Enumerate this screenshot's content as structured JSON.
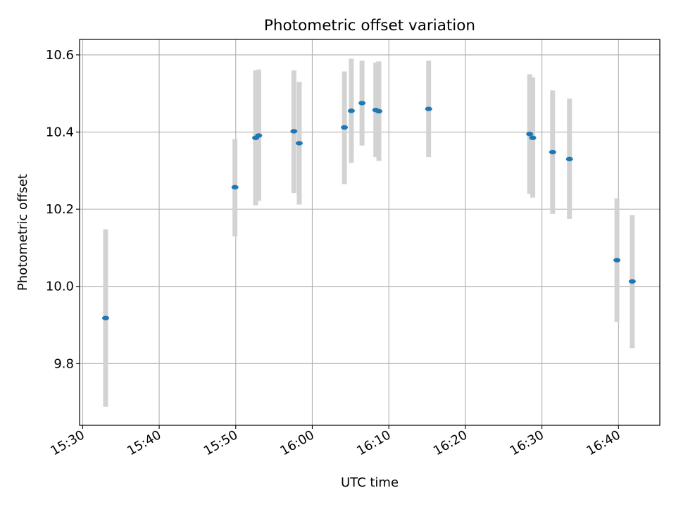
{
  "chart_data": {
    "type": "scatter",
    "title": "Photometric offset variation",
    "xlabel": "UTC time",
    "ylabel": "Photometric offset",
    "x_unit": "HH:MM UTC",
    "xlim": [
      "15:29.6",
      "16:45.4"
    ],
    "ylim": [
      9.64,
      10.64
    ],
    "x_ticks": [
      "15:30",
      "15:40",
      "15:50",
      "16:00",
      "16:10",
      "16:20",
      "16:30",
      "16:40"
    ],
    "y_ticks": [
      "9.8",
      "10.0",
      "10.2",
      "10.4",
      "10.6"
    ],
    "grid": true,
    "colors": {
      "marker": "#1f77b4",
      "errorbar": "#d3d3d3",
      "grid": "#b0b0b0",
      "axes": "#000000"
    },
    "series": [
      {
        "points": [
          {
            "x": "15:33.0",
            "y": 9.918,
            "ylo": 9.688,
            "yhi": 10.148
          },
          {
            "x": "15:49.9",
            "y": 10.257,
            "ylo": 10.13,
            "yhi": 10.382
          },
          {
            "x": "15:52.6",
            "y": 10.385,
            "ylo": 10.21,
            "yhi": 10.56
          },
          {
            "x": "15:53.0",
            "y": 10.391,
            "ylo": 10.222,
            "yhi": 10.562
          },
          {
            "x": "15:57.6",
            "y": 10.402,
            "ylo": 10.242,
            "yhi": 10.56
          },
          {
            "x": "15:58.3",
            "y": 10.371,
            "ylo": 10.212,
            "yhi": 10.53
          },
          {
            "x": "16:04.2",
            "y": 10.412,
            "ylo": 10.265,
            "yhi": 10.557
          },
          {
            "x": "16:05.1",
            "y": 10.455,
            "ylo": 10.32,
            "yhi": 10.59
          },
          {
            "x": "16:06.5",
            "y": 10.475,
            "ylo": 10.365,
            "yhi": 10.585
          },
          {
            "x": "16:08.3",
            "y": 10.457,
            "ylo": 10.335,
            "yhi": 10.58
          },
          {
            "x": "16:08.7",
            "y": 10.454,
            "ylo": 10.325,
            "yhi": 10.583
          },
          {
            "x": "16:15.2",
            "y": 10.46,
            "ylo": 10.335,
            "yhi": 10.585
          },
          {
            "x": "16:28.4",
            "y": 10.395,
            "ylo": 10.24,
            "yhi": 10.55
          },
          {
            "x": "16:28.8",
            "y": 10.385,
            "ylo": 10.23,
            "yhi": 10.542
          },
          {
            "x": "16:31.4",
            "y": 10.348,
            "ylo": 10.188,
            "yhi": 10.508
          },
          {
            "x": "16:33.6",
            "y": 10.33,
            "ylo": 10.175,
            "yhi": 10.487
          },
          {
            "x": "16:39.8",
            "y": 10.068,
            "ylo": 9.908,
            "yhi": 10.228
          },
          {
            "x": "16:41.8",
            "y": 10.013,
            "ylo": 9.84,
            "yhi": 10.185
          }
        ]
      }
    ]
  }
}
